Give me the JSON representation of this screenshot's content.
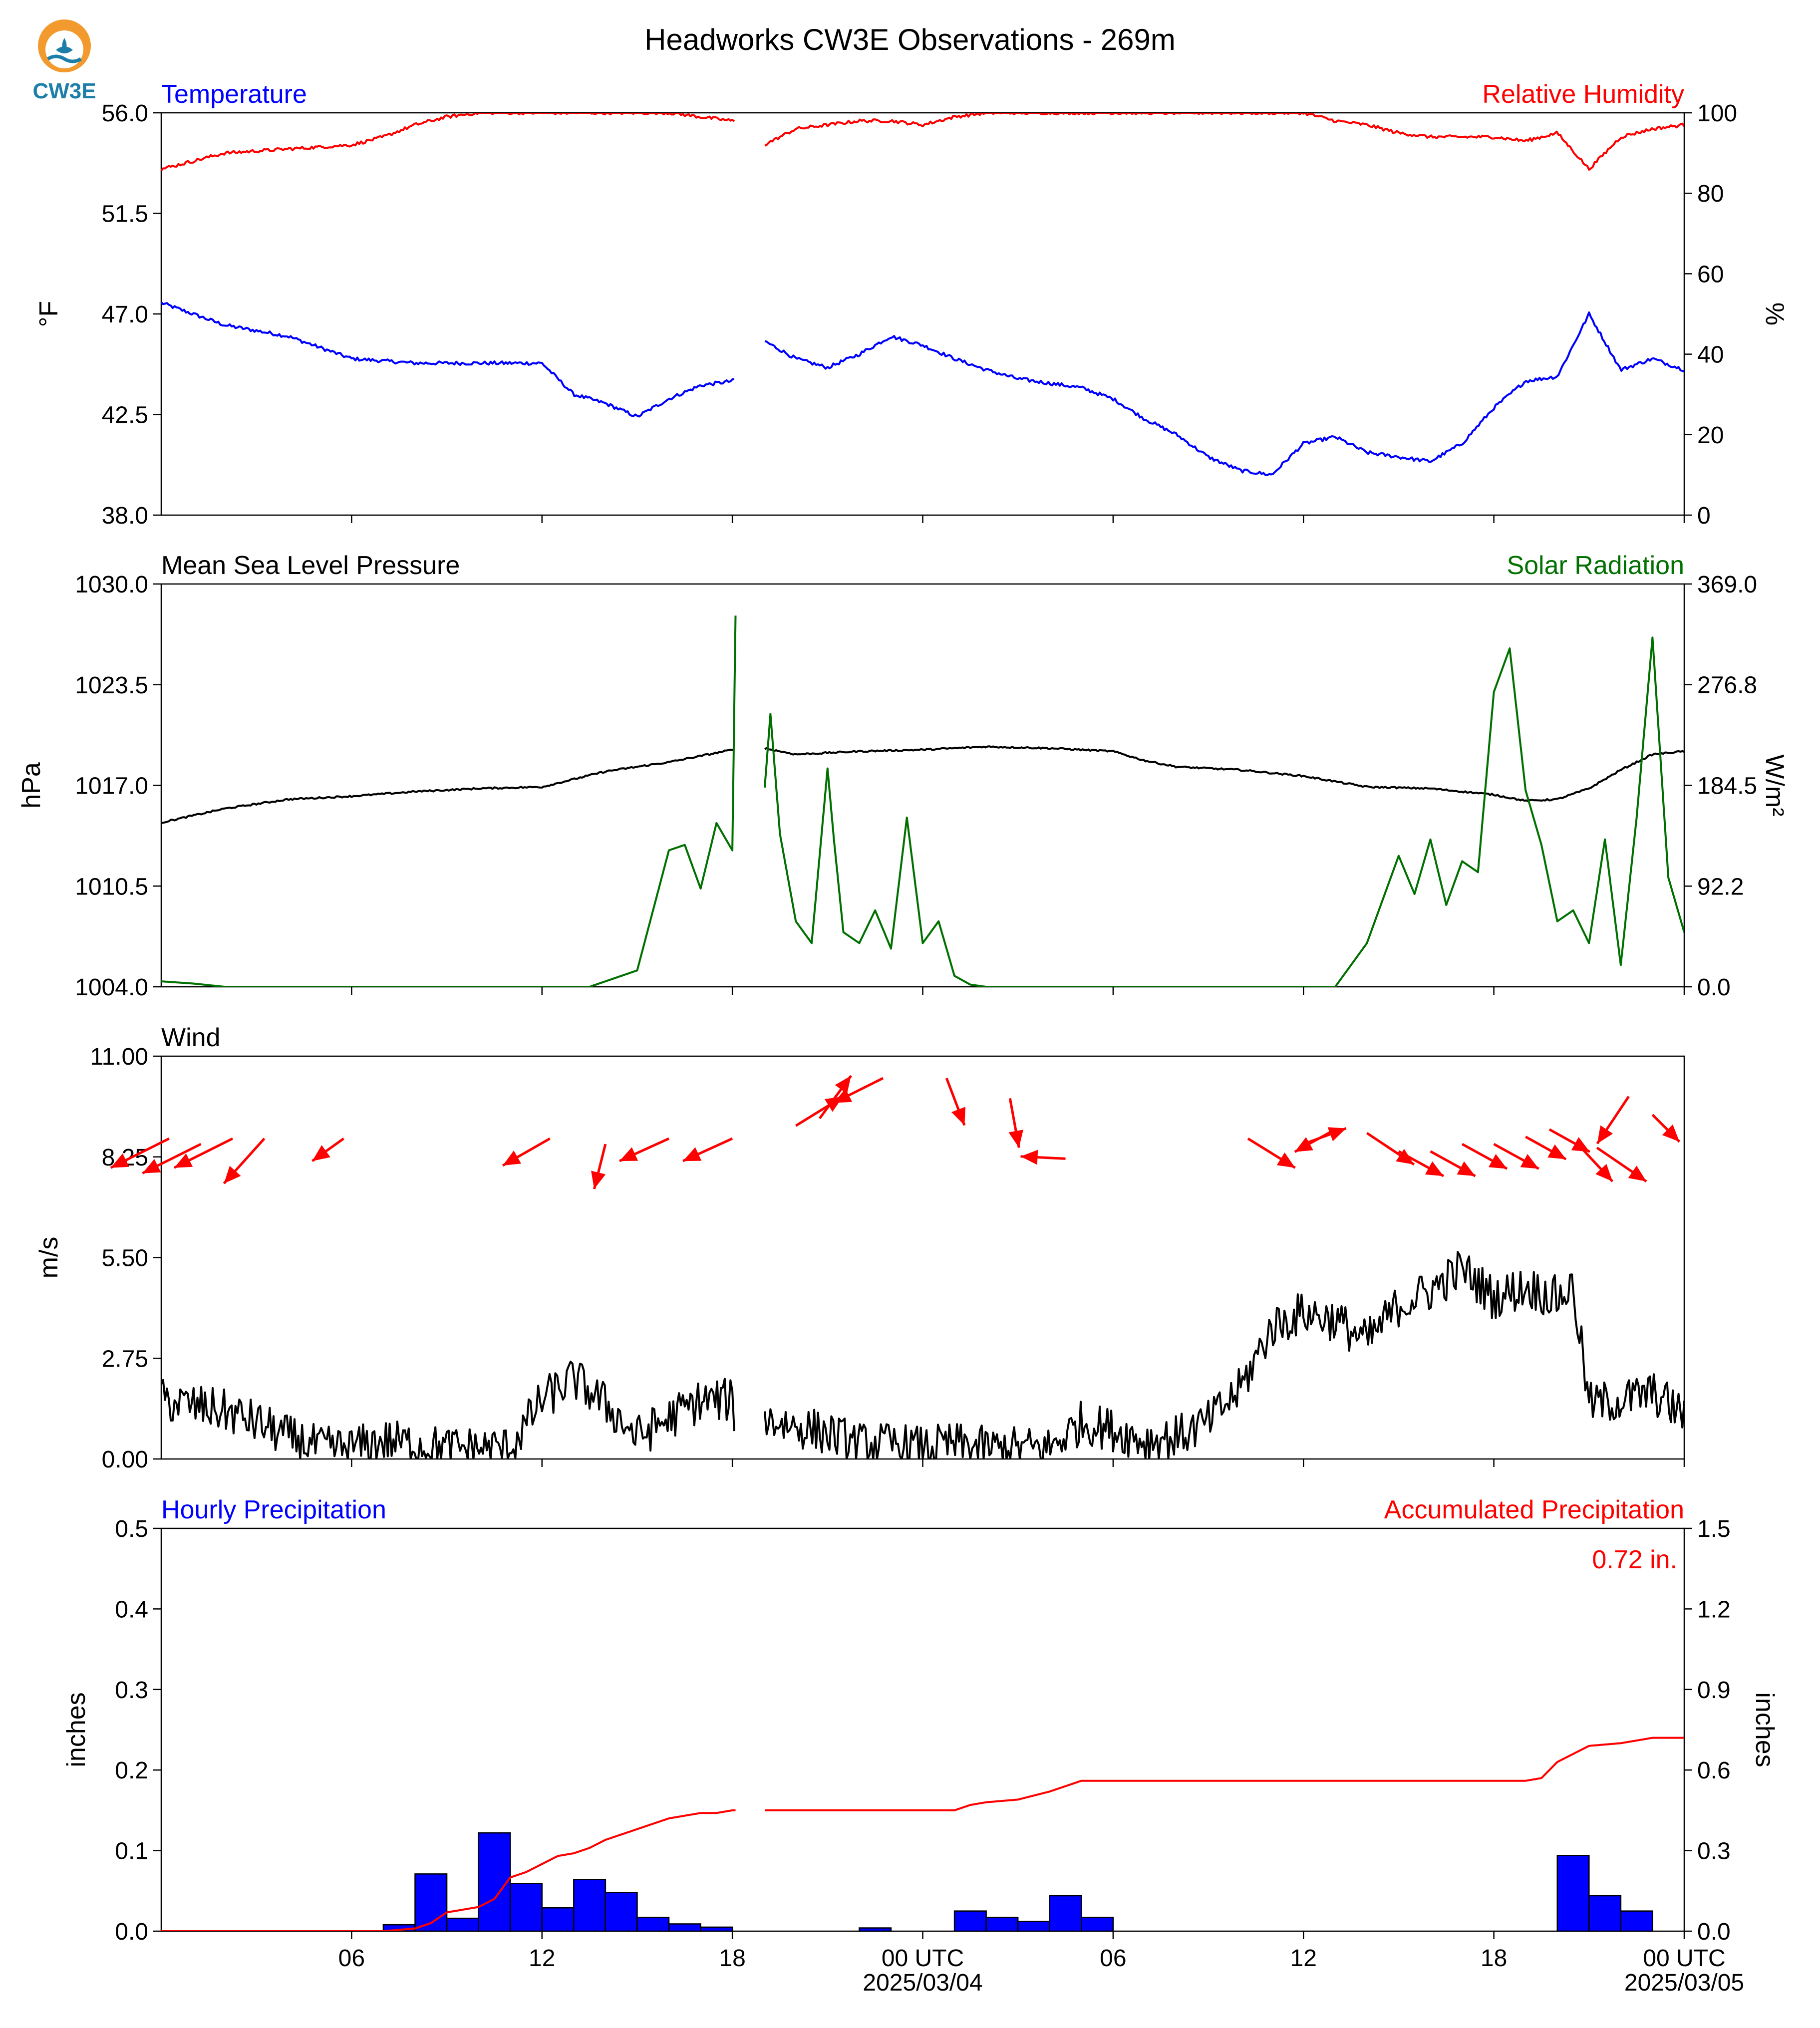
{
  "title": "Headworks CW3E Observations - 269m",
  "logo": {
    "text": "CW3E",
    "sun_color": "#f29a2e",
    "wave_color": "#1d7fa8"
  },
  "time_axis": {
    "hours_total": 48,
    "tick_hours": [
      6,
      12,
      18,
      24,
      30,
      36,
      42,
      48
    ],
    "tick_labels": [
      "06",
      "12",
      "18",
      "00 UTC",
      "06",
      "12",
      "18",
      "00 UTC"
    ],
    "date_labels": [
      {
        "hour": 24,
        "text": "2025/03/04"
      },
      {
        "hour": 48,
        "text": "2025/03/05"
      }
    ]
  },
  "chart_data": [
    {
      "type": "line",
      "left_title": "Temperature",
      "right_title": "Relative Humidity",
      "left_title_color": "#0000ff",
      "right_title_color": "#ff0000",
      "ylabel": "°F",
      "ylabel_right": "%",
      "ylim": [
        38.0,
        56.0
      ],
      "yticks": [
        38.0,
        42.5,
        47.0,
        51.5,
        56.0
      ],
      "ytick_labels": [
        "38.0",
        "42.5",
        "47.0",
        "51.5",
        "56.0"
      ],
      "ylim_right": [
        0,
        100
      ],
      "yticks_right": [
        0,
        20,
        40,
        60,
        80,
        100
      ],
      "ytick_labels_right": [
        "0",
        "20",
        "40",
        "60",
        "80",
        "100"
      ],
      "series": [
        {
          "color": "#0000ff",
          "axis": "left",
          "gap": [
            18.1,
            19.0
          ],
          "noise": 0.08,
          "x": [
            0,
            2,
            4,
            6,
            8,
            10,
            12,
            13,
            14,
            15,
            16,
            17,
            18,
            18.1,
            19,
            20,
            21,
            22,
            23,
            24,
            25,
            26,
            27,
            28,
            29,
            30,
            31,
            32,
            33,
            34,
            35,
            36,
            37,
            38,
            39,
            40,
            41,
            42,
            43,
            44,
            45,
            46,
            47,
            48
          ],
          "y": [
            47.5,
            46.5,
            46.0,
            45.0,
            44.8,
            44.8,
            44.8,
            43.4,
            43.0,
            42.4,
            43.2,
            43.8,
            44.0,
            44.1,
            45.8,
            45.0,
            44.6,
            45.2,
            46.0,
            45.6,
            45.0,
            44.5,
            44.1,
            43.9,
            43.7,
            43.2,
            42.3,
            41.6,
            40.6,
            40.0,
            39.8,
            41.2,
            41.5,
            40.8,
            40.6,
            40.4,
            41.2,
            42.8,
            44.0,
            44.2,
            47.0,
            44.5,
            45.0,
            44.5
          ]
        },
        {
          "color": "#ff0000",
          "axis": "right",
          "gap": [
            18.1,
            19.0
          ],
          "noise": 0.4,
          "x": [
            0,
            2,
            4,
            6,
            7,
            8,
            9,
            10,
            12,
            14,
            16,
            18,
            18.1,
            19,
            20,
            21,
            22,
            23,
            24,
            25,
            26,
            27,
            28,
            30,
            33,
            36,
            37,
            38,
            39,
            40,
            41,
            42,
            43,
            44,
            45,
            46,
            47,
            48
          ],
          "y": [
            86,
            90,
            91,
            92,
            94,
            97,
            99,
            100,
            100,
            100,
            100,
            98,
            98,
            92,
            96,
            97,
            98,
            98,
            97,
            99,
            100,
            100,
            100,
            100,
            100,
            100,
            98,
            97,
            95,
            94,
            94,
            94,
            93,
            95,
            86,
            94,
            96,
            97
          ]
        }
      ]
    },
    {
      "type": "line",
      "left_title": "Mean Sea Level Pressure",
      "right_title": "Solar Radiation",
      "left_title_color": "#000000",
      "right_title_color": "#007000",
      "ylabel": "hPa",
      "ylabel_right": "W/m²",
      "ylim": [
        1004.0,
        1030.0
      ],
      "yticks": [
        1004.0,
        1010.5,
        1017.0,
        1023.5,
        1030.0
      ],
      "ytick_labels": [
        "1004.0",
        "1010.5",
        "1017.0",
        "1023.5",
        "1030.0"
      ],
      "ylim_right": [
        0.0,
        369.0
      ],
      "yticks_right": [
        0.0,
        92.2,
        184.5,
        276.8,
        369.0
      ],
      "ytick_labels_right": [
        "0.0",
        "92.2",
        "184.5",
        "276.8",
        "369.0"
      ],
      "series": [
        {
          "color": "#000000",
          "axis": "left",
          "gap": [
            18.1,
            19.0
          ],
          "noise": 0.05,
          "x": [
            0,
            2,
            4,
            6,
            8,
            10,
            12,
            14,
            16,
            18,
            18.1,
            19,
            20,
            22,
            24,
            26,
            28,
            30,
            31,
            32,
            34,
            36,
            38,
            40,
            42,
            43,
            44,
            45,
            46,
            47,
            48
          ],
          "y": [
            1014.6,
            1015.5,
            1016.1,
            1016.3,
            1016.6,
            1016.8,
            1016.9,
            1017.9,
            1018.5,
            1019.3,
            1019.3,
            1019.4,
            1019.0,
            1019.2,
            1019.3,
            1019.5,
            1019.4,
            1019.2,
            1018.6,
            1018.2,
            1018.0,
            1017.6,
            1016.9,
            1016.8,
            1016.4,
            1016.0,
            1016.1,
            1016.8,
            1018.0,
            1019.0,
            1019.2
          ]
        },
        {
          "color": "#007000",
          "axis": "right",
          "gap": [
            18.1,
            19.0
          ],
          "noise": 0,
          "x": [
            0,
            1,
            2,
            13.5,
            14,
            15,
            15.5,
            16,
            16.5,
            17,
            17.5,
            18,
            18.1,
            19,
            19.2,
            19.5,
            20,
            20.5,
            21,
            21.2,
            21.5,
            22,
            22.5,
            23,
            23.5,
            24,
            24.5,
            25,
            25.5,
            26,
            37,
            38,
            39,
            39.5,
            40,
            40.5,
            41,
            41.5,
            42,
            42.5,
            43,
            43.5,
            44,
            44.5,
            45,
            45.5,
            46,
            46.5,
            47,
            47.5,
            48
          ],
          "y": [
            5,
            3,
            0,
            0,
            5,
            15,
            70,
            125,
            130,
            90,
            150,
            125,
            340,
            175,
            250,
            140,
            60,
            40,
            200,
            135,
            50,
            40,
            70,
            35,
            155,
            40,
            60,
            10,
            2,
            0,
            0,
            40,
            120,
            85,
            135,
            75,
            115,
            105,
            270,
            310,
            180,
            130,
            60,
            70,
            40,
            135,
            20,
            155,
            320,
            100,
            50
          ]
        }
      ]
    },
    {
      "type": "line+quiver",
      "left_title": "Wind",
      "left_title_color": "#000000",
      "ylabel": "m/s",
      "ylim": [
        0.0,
        11.0
      ],
      "yticks": [
        0.0,
        2.75,
        5.5,
        8.25,
        11.0
      ],
      "ytick_labels": [
        "0.00",
        "2.75",
        "5.50",
        "8.25",
        "11.00"
      ],
      "series": [
        {
          "color": "#000000",
          "axis": "left",
          "gap": [
            18.1,
            19.0
          ],
          "noise": 0.6,
          "floor": 0,
          "x": [
            0,
            2,
            3,
            4,
            5,
            6,
            7,
            8,
            9,
            10,
            11,
            12,
            13,
            14,
            15,
            16,
            17,
            18,
            18.1,
            19,
            20,
            21,
            22,
            23,
            24,
            25,
            26,
            27,
            28,
            29,
            30,
            31,
            32,
            33,
            34,
            35,
            36,
            37,
            38,
            39,
            40,
            41,
            42,
            43,
            44,
            44.5,
            45,
            46,
            47,
            48
          ],
          "y": [
            1.6,
            1.3,
            1.0,
            0.6,
            0.3,
            0.3,
            0.5,
            0.4,
            0.3,
            0.3,
            0.3,
            1.6,
            2.2,
            1.5,
            0.6,
            1.1,
            1.6,
            1.6,
            1.1,
            1.1,
            0.9,
            0.7,
            0.4,
            0.4,
            0.3,
            0.4,
            0.3,
            0.3,
            0.3,
            1.0,
            0.8,
            0.5,
            0.6,
            1.0,
            1.9,
            3.6,
            4.0,
            3.8,
            3.2,
            4.2,
            4.6,
            5.2,
            4.4,
            4.7,
            4.4,
            4.7,
            1.5,
            1.6,
            1.8,
            1.2
          ]
        }
      ],
      "wind_barbs": {
        "color": "#ff0000",
        "x": [
          0.25,
          1.25,
          2.25,
          3.25,
          5.75,
          12.25,
          14.0,
          16.0,
          18.0,
          20.0,
          20.75,
          22.75,
          24.75,
          26.75,
          28.5,
          34.25,
          36.0,
          37.0,
          38.0,
          39.0,
          40.0,
          41.0,
          42.0,
          43.0,
          43.75,
          44.75,
          45.25,
          46.25,
          47.0
        ],
        "y": [
          8.75,
          8.6,
          8.75,
          8.75,
          8.75,
          8.75,
          8.6,
          8.75,
          8.75,
          9.1,
          9.3,
          10.4,
          10.4,
          9.85,
          8.2,
          8.75,
          8.6,
          9.0,
          8.9,
          8.4,
          8.4,
          8.6,
          8.6,
          8.8,
          9.0,
          8.5,
          8.5,
          9.9,
          9.4
        ],
        "u": [
          -2.6,
          -2.6,
          -2.6,
          -1.8,
          -1.4,
          -2.1,
          -0.5,
          -2.2,
          -2.2,
          2.1,
          1.4,
          -2.2,
          0.8,
          0.4,
          -2.0,
          2.1,
          1.9,
          -1.8,
          2.1,
          2.0,
          2.0,
          2.0,
          2.0,
          1.8,
          1.8,
          1.4,
          2.2,
          -1.4,
          1.2
        ],
        "v": [
          -1.3,
          -1.3,
          -1.3,
          -2.0,
          -1.0,
          -1.2,
          -2.0,
          -1.0,
          -1.0,
          1.3,
          1.9,
          -1.1,
          -2.1,
          -2.2,
          0.1,
          -1.3,
          0.7,
          -1.0,
          -1.4,
          -1.1,
          -1.1,
          -1.1,
          -1.1,
          -1.0,
          -1.0,
          -1.5,
          -1.5,
          -2.1,
          -1.2
        ]
      }
    },
    {
      "type": "bar+line",
      "left_title": "Hourly Precipitation",
      "right_title": "Accumulated Precipitation",
      "left_title_color": "#0000ff",
      "right_title_color": "#ff0000",
      "ylabel": "inches",
      "ylabel_right": "inches",
      "ylim": [
        0.0,
        0.5
      ],
      "yticks": [
        0.0,
        0.1,
        0.2,
        0.3,
        0.4,
        0.5
      ],
      "ytick_labels": [
        "0.0",
        "0.1",
        "0.2",
        "0.3",
        "0.4",
        "0.5"
      ],
      "ylim_right": [
        0.0,
        1.5
      ],
      "yticks_right": [
        0.0,
        0.3,
        0.6,
        0.9,
        1.2,
        1.5
      ],
      "ytick_labels_right": [
        "0.0",
        "0.3",
        "0.6",
        "0.9",
        "1.2",
        "1.5"
      ],
      "bars": {
        "color": "#0000ff",
        "x": [
          7,
          8,
          9,
          10,
          11,
          12,
          13,
          14,
          15,
          16,
          17,
          18,
          22,
          25,
          26,
          27,
          28,
          29,
          44,
          45,
          46
        ],
        "values": [
          0.008,
          0.071,
          0.016,
          0.122,
          0.059,
          0.029,
          0.064,
          0.048,
          0.017,
          0.009,
          0.005,
          0.0,
          0.004,
          0.025,
          0.017,
          0.012,
          0.044,
          0.017,
          0.094,
          0.044,
          0.025
        ]
      },
      "series": [
        {
          "color": "#ff0000",
          "axis": "right",
          "gap": [
            18.1,
            19.0
          ],
          "noise": 0,
          "x": [
            0,
            7,
            8,
            8.5,
            9,
            9.5,
            10,
            10.5,
            11,
            11.5,
            12,
            12.5,
            13,
            13.5,
            14,
            14.5,
            15,
            15.5,
            16,
            16.5,
            17,
            17.5,
            18,
            18.1,
            19,
            22,
            25,
            25.5,
            26,
            27,
            28,
            29,
            30,
            43,
            43.5,
            44,
            44.5,
            45,
            46,
            47,
            48
          ],
          "y": [
            0.0,
            0.0,
            0.01,
            0.03,
            0.07,
            0.08,
            0.09,
            0.12,
            0.2,
            0.22,
            0.25,
            0.28,
            0.29,
            0.31,
            0.34,
            0.36,
            0.38,
            0.4,
            0.42,
            0.43,
            0.44,
            0.44,
            0.45,
            0.45,
            0.45,
            0.45,
            0.45,
            0.47,
            0.48,
            0.49,
            0.52,
            0.56,
            0.56,
            0.56,
            0.57,
            0.63,
            0.66,
            0.69,
            0.7,
            0.72,
            0.72
          ]
        }
      ],
      "annotation": {
        "text": "0.72 in.",
        "color": "#ff0000",
        "position": "top-right"
      }
    }
  ]
}
